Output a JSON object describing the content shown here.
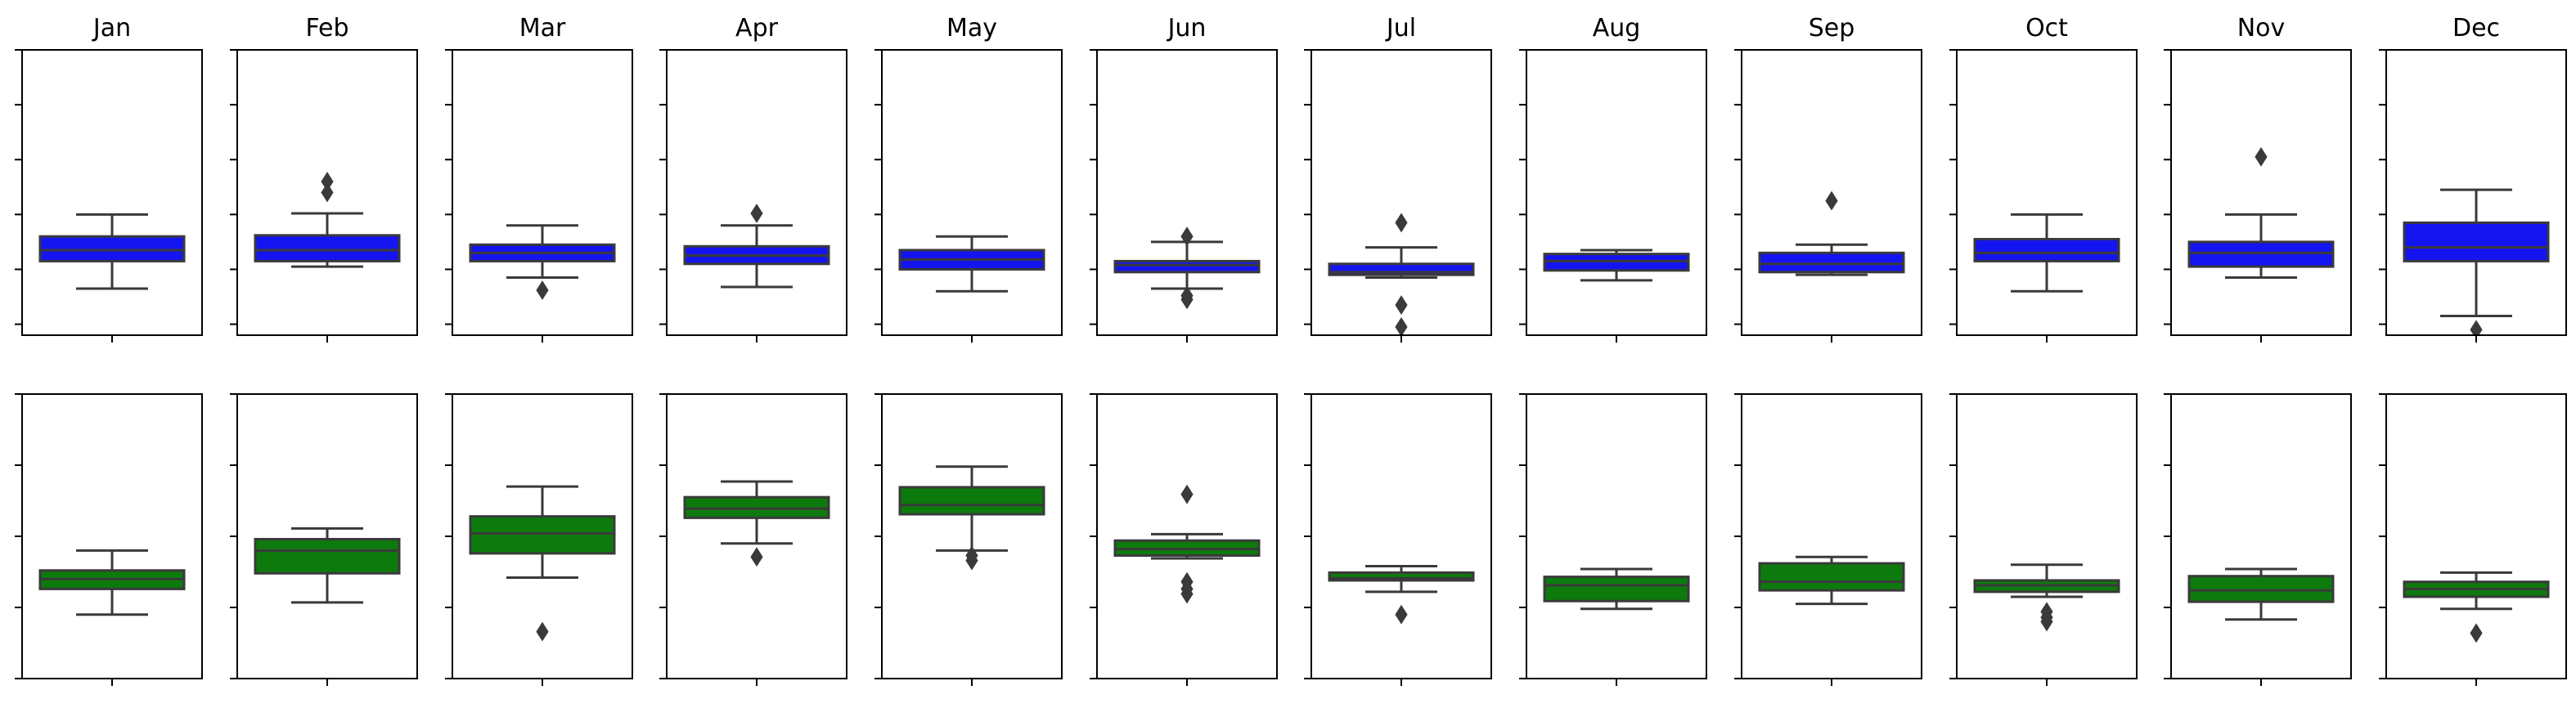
{
  "colors": {
    "top_box": "#1414f0",
    "bottom_box": "#0d7a0d",
    "line": "#3a3a3a",
    "axes": "#000000"
  },
  "chart_data": [
    {
      "type": "box",
      "row": "top",
      "categories": [
        "Jan",
        "Feb",
        "Mar",
        "Apr",
        "May",
        "Jun",
        "Jul",
        "Aug",
        "Sep",
        "Oct",
        "Nov",
        "Dec"
      ],
      "ylim": [
        -0.2,
        5.0
      ],
      "boxes": [
        {
          "min": 0.65,
          "q1": 1.15,
          "median": 1.35,
          "q3": 1.6,
          "max": 2.0,
          "outliers": []
        },
        {
          "min": 1.05,
          "q1": 1.15,
          "median": 1.35,
          "q3": 1.62,
          "max": 2.02,
          "outliers": [
            2.4,
            2.6
          ]
        },
        {
          "min": 0.85,
          "q1": 1.15,
          "median": 1.3,
          "q3": 1.45,
          "max": 1.8,
          "outliers": [
            0.62
          ]
        },
        {
          "min": 0.68,
          "q1": 1.1,
          "median": 1.25,
          "q3": 1.42,
          "max": 1.8,
          "outliers": [
            2.02
          ]
        },
        {
          "min": 0.6,
          "q1": 1.0,
          "median": 1.18,
          "q3": 1.35,
          "max": 1.6,
          "outliers": []
        },
        {
          "min": 0.65,
          "q1": 0.95,
          "median": 1.08,
          "q3": 1.15,
          "max": 1.5,
          "outliers": [
            0.45,
            0.52,
            1.6
          ]
        },
        {
          "min": 0.85,
          "q1": 0.9,
          "median": 0.95,
          "q3": 1.1,
          "max": 1.4,
          "outliers": [
            0.35,
            -0.05,
            1.85
          ]
        },
        {
          "min": 0.8,
          "q1": 0.98,
          "median": 1.15,
          "q3": 1.28,
          "max": 1.35,
          "outliers": []
        },
        {
          "min": 0.9,
          "q1": 0.95,
          "median": 1.1,
          "q3": 1.3,
          "max": 1.45,
          "outliers": [
            2.25
          ]
        },
        {
          "min": 0.6,
          "q1": 1.15,
          "median": 1.3,
          "q3": 1.55,
          "max": 2.0,
          "outliers": []
        },
        {
          "min": 0.85,
          "q1": 1.05,
          "median": 1.3,
          "q3": 1.5,
          "max": 2.0,
          "outliers": [
            3.05
          ]
        },
        {
          "min": 0.15,
          "q1": 1.15,
          "median": 1.4,
          "q3": 1.85,
          "max": 2.45,
          "outliers": [
            -0.1
          ]
        }
      ]
    },
    {
      "type": "box",
      "row": "bottom",
      "categories": [
        "Jan",
        "Feb",
        "Mar",
        "Apr",
        "May",
        "Jun",
        "Jul",
        "Aug",
        "Sep",
        "Oct",
        "Nov",
        "Dec"
      ],
      "ylim": [
        0.0,
        4.0
      ],
      "boxes": [
        {
          "min": 0.9,
          "q1": 1.26,
          "median": 1.4,
          "q3": 1.52,
          "max": 1.8,
          "outliers": []
        },
        {
          "min": 1.07,
          "q1": 1.48,
          "median": 1.8,
          "q3": 1.96,
          "max": 2.11,
          "outliers": []
        },
        {
          "min": 1.42,
          "q1": 1.76,
          "median": 2.04,
          "q3": 2.28,
          "max": 2.7,
          "outliers": [
            0.66
          ]
        },
        {
          "min": 1.9,
          "q1": 2.26,
          "median": 2.39,
          "q3": 2.55,
          "max": 2.77,
          "outliers": [
            1.71
          ]
        },
        {
          "min": 1.8,
          "q1": 2.31,
          "median": 2.44,
          "q3": 2.69,
          "max": 2.98,
          "outliers": [
            1.66,
            1.73
          ]
        },
        {
          "min": 1.69,
          "q1": 1.73,
          "median": 1.82,
          "q3": 1.94,
          "max": 2.03,
          "outliers": [
            1.19,
            1.26,
            1.36,
            2.59
          ]
        },
        {
          "min": 1.22,
          "q1": 1.38,
          "median": 1.41,
          "q3": 1.49,
          "max": 1.58,
          "outliers": [
            0.9
          ]
        },
        {
          "min": 0.98,
          "q1": 1.09,
          "median": 1.31,
          "q3": 1.43,
          "max": 1.54,
          "outliers": []
        },
        {
          "min": 1.05,
          "q1": 1.24,
          "median": 1.36,
          "q3": 1.62,
          "max": 1.71,
          "outliers": []
        },
        {
          "min": 1.15,
          "q1": 1.22,
          "median": 1.31,
          "q3": 1.38,
          "max": 1.6,
          "outliers": [
            0.8,
            0.86,
            0.94
          ]
        },
        {
          "min": 0.83,
          "q1": 1.08,
          "median": 1.24,
          "q3": 1.44,
          "max": 1.54,
          "outliers": []
        },
        {
          "min": 0.98,
          "q1": 1.15,
          "median": 1.26,
          "q3": 1.36,
          "max": 1.49,
          "outliers": [
            0.64
          ]
        }
      ]
    }
  ]
}
